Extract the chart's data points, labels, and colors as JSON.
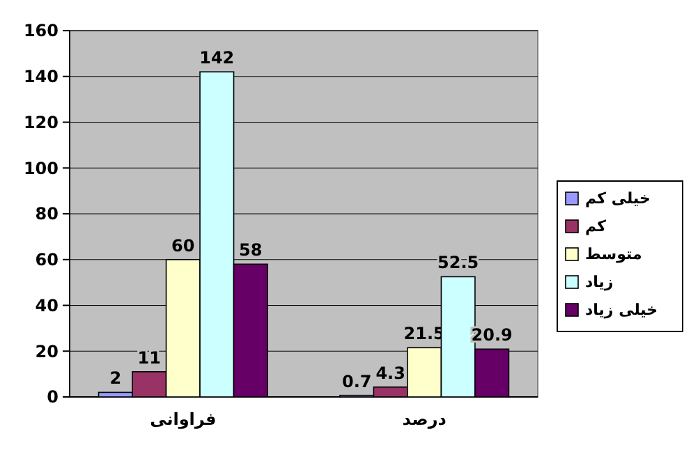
{
  "chart_data": {
    "type": "bar",
    "categories": [
      "فراوانی",
      "درصد"
    ],
    "series": [
      {
        "name": "خیلی کم",
        "color": "#9999ff",
        "values": [
          2,
          0.7
        ]
      },
      {
        "name": "کم",
        "color": "#993366",
        "values": [
          11,
          4.3
        ]
      },
      {
        "name": "متوسط",
        "color": "#ffffcc",
        "values": [
          60,
          21.5
        ]
      },
      {
        "name": "زیاد",
        "color": "#ccffff",
        "values": [
          142,
          52.5
        ]
      },
      {
        "name": "خیلی زیاد",
        "color": "#660066",
        "values": [
          58,
          20.9
        ]
      }
    ],
    "ylim": [
      0,
      160
    ],
    "yticks": [
      0,
      20,
      40,
      60,
      80,
      100,
      120,
      140,
      160
    ],
    "grid": "y",
    "legend": "right",
    "data_labels": true
  }
}
